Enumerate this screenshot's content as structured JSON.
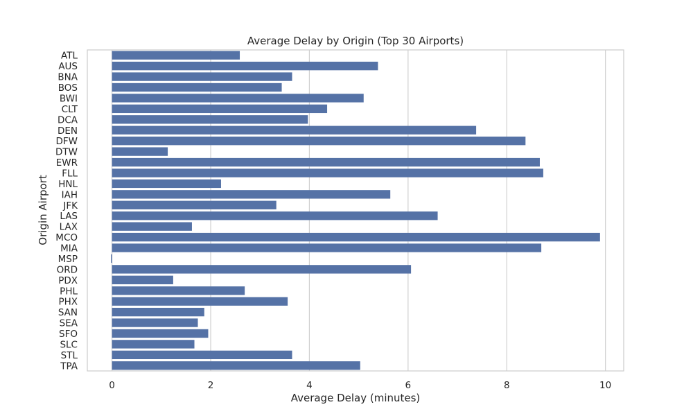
{
  "chart_data": {
    "type": "bar",
    "orientation": "horizontal",
    "title": "Average Delay by Origin (Top 30 Airports)",
    "xlabel": "Average Delay (minutes)",
    "ylabel": "Origin Airport",
    "xlim": [
      -0.5,
      10.37
    ],
    "xticks": [
      0,
      2,
      4,
      6,
      8,
      10
    ],
    "grid": true,
    "bar_color": "#5572a6",
    "categories": [
      "ATL",
      "AUS",
      "BNA",
      "BOS",
      "BWI",
      "CLT",
      "DCA",
      "DEN",
      "DFW",
      "DTW",
      "EWR",
      "FLL",
      "HNL",
      "IAH",
      "JFK",
      "LAS",
      "LAX",
      "MCO",
      "MIA",
      "MSP",
      "ORD",
      "PDX",
      "PHL",
      "PHX",
      "SAN",
      "SEA",
      "SFO",
      "SLC",
      "STL",
      "TPA"
    ],
    "values": [
      2.59,
      5.39,
      3.65,
      3.44,
      5.1,
      4.36,
      3.97,
      7.38,
      8.38,
      1.13,
      8.67,
      8.74,
      2.21,
      5.64,
      3.33,
      6.6,
      1.62,
      9.89,
      8.7,
      -0.02,
      6.06,
      1.24,
      2.69,
      3.56,
      1.87,
      1.74,
      1.95,
      1.67,
      3.65,
      5.03
    ]
  }
}
